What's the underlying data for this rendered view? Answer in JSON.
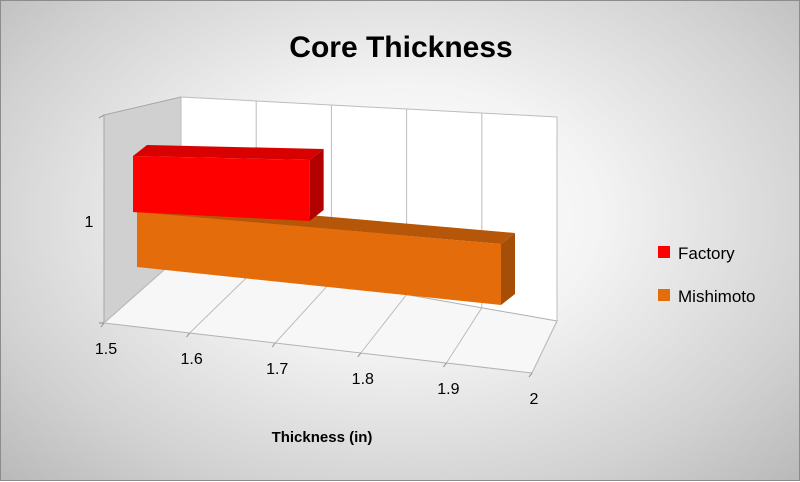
{
  "chart_data": {
    "type": "bar",
    "orientation": "horizontal",
    "style": "3d",
    "title": "Core Thickness",
    "xlabel": "Thickness (in)",
    "ylabel": "",
    "categories": [
      "1"
    ],
    "x_ticks": [
      "1.5",
      "1.6",
      "1.7",
      "1.8",
      "1.9",
      "2"
    ],
    "xlim": [
      1.5,
      2
    ],
    "series": [
      {
        "name": "Factory",
        "values": [
          1.74
        ],
        "color": "#ff0000"
      },
      {
        "name": "Mishimoto",
        "values": [
          2.0
        ],
        "color": "#e46c0a"
      }
    ],
    "legend_position": "right",
    "grid": true
  }
}
